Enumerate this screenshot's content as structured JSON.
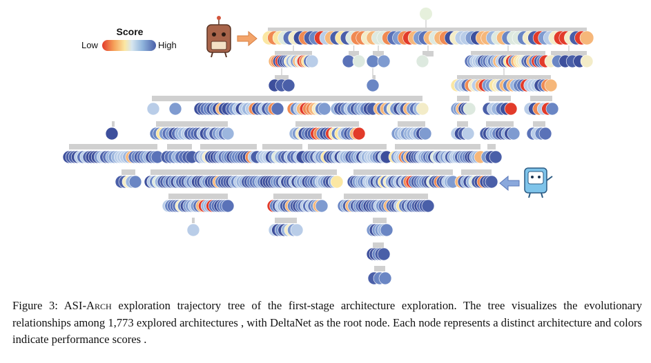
{
  "legend": {
    "title": "Score",
    "low_label": "Low",
    "high_label": "High",
    "colors": [
      "#e23b2a",
      "#f6a25a",
      "#fbe7a3",
      "#d7e6ef",
      "#8fb4dc",
      "#4a5fa8"
    ]
  },
  "icons": [
    "robot-researcher-icon",
    "robot-tablet-icon",
    "arrow-right-icon",
    "arrow-left-icon"
  ],
  "caption": {
    "label": "Figure 3:",
    "system_prefix": "ASI-A",
    "system_smallcaps": "rch",
    "text": "exploration trajectory tree of the first-stage architecture exploration. The tree visualizes the evolutionary relationships among 1,773 explored architectures , with DeltaNet as the root node. Each node represents a distinct architecture and colors indicate performance scores ."
  }
}
